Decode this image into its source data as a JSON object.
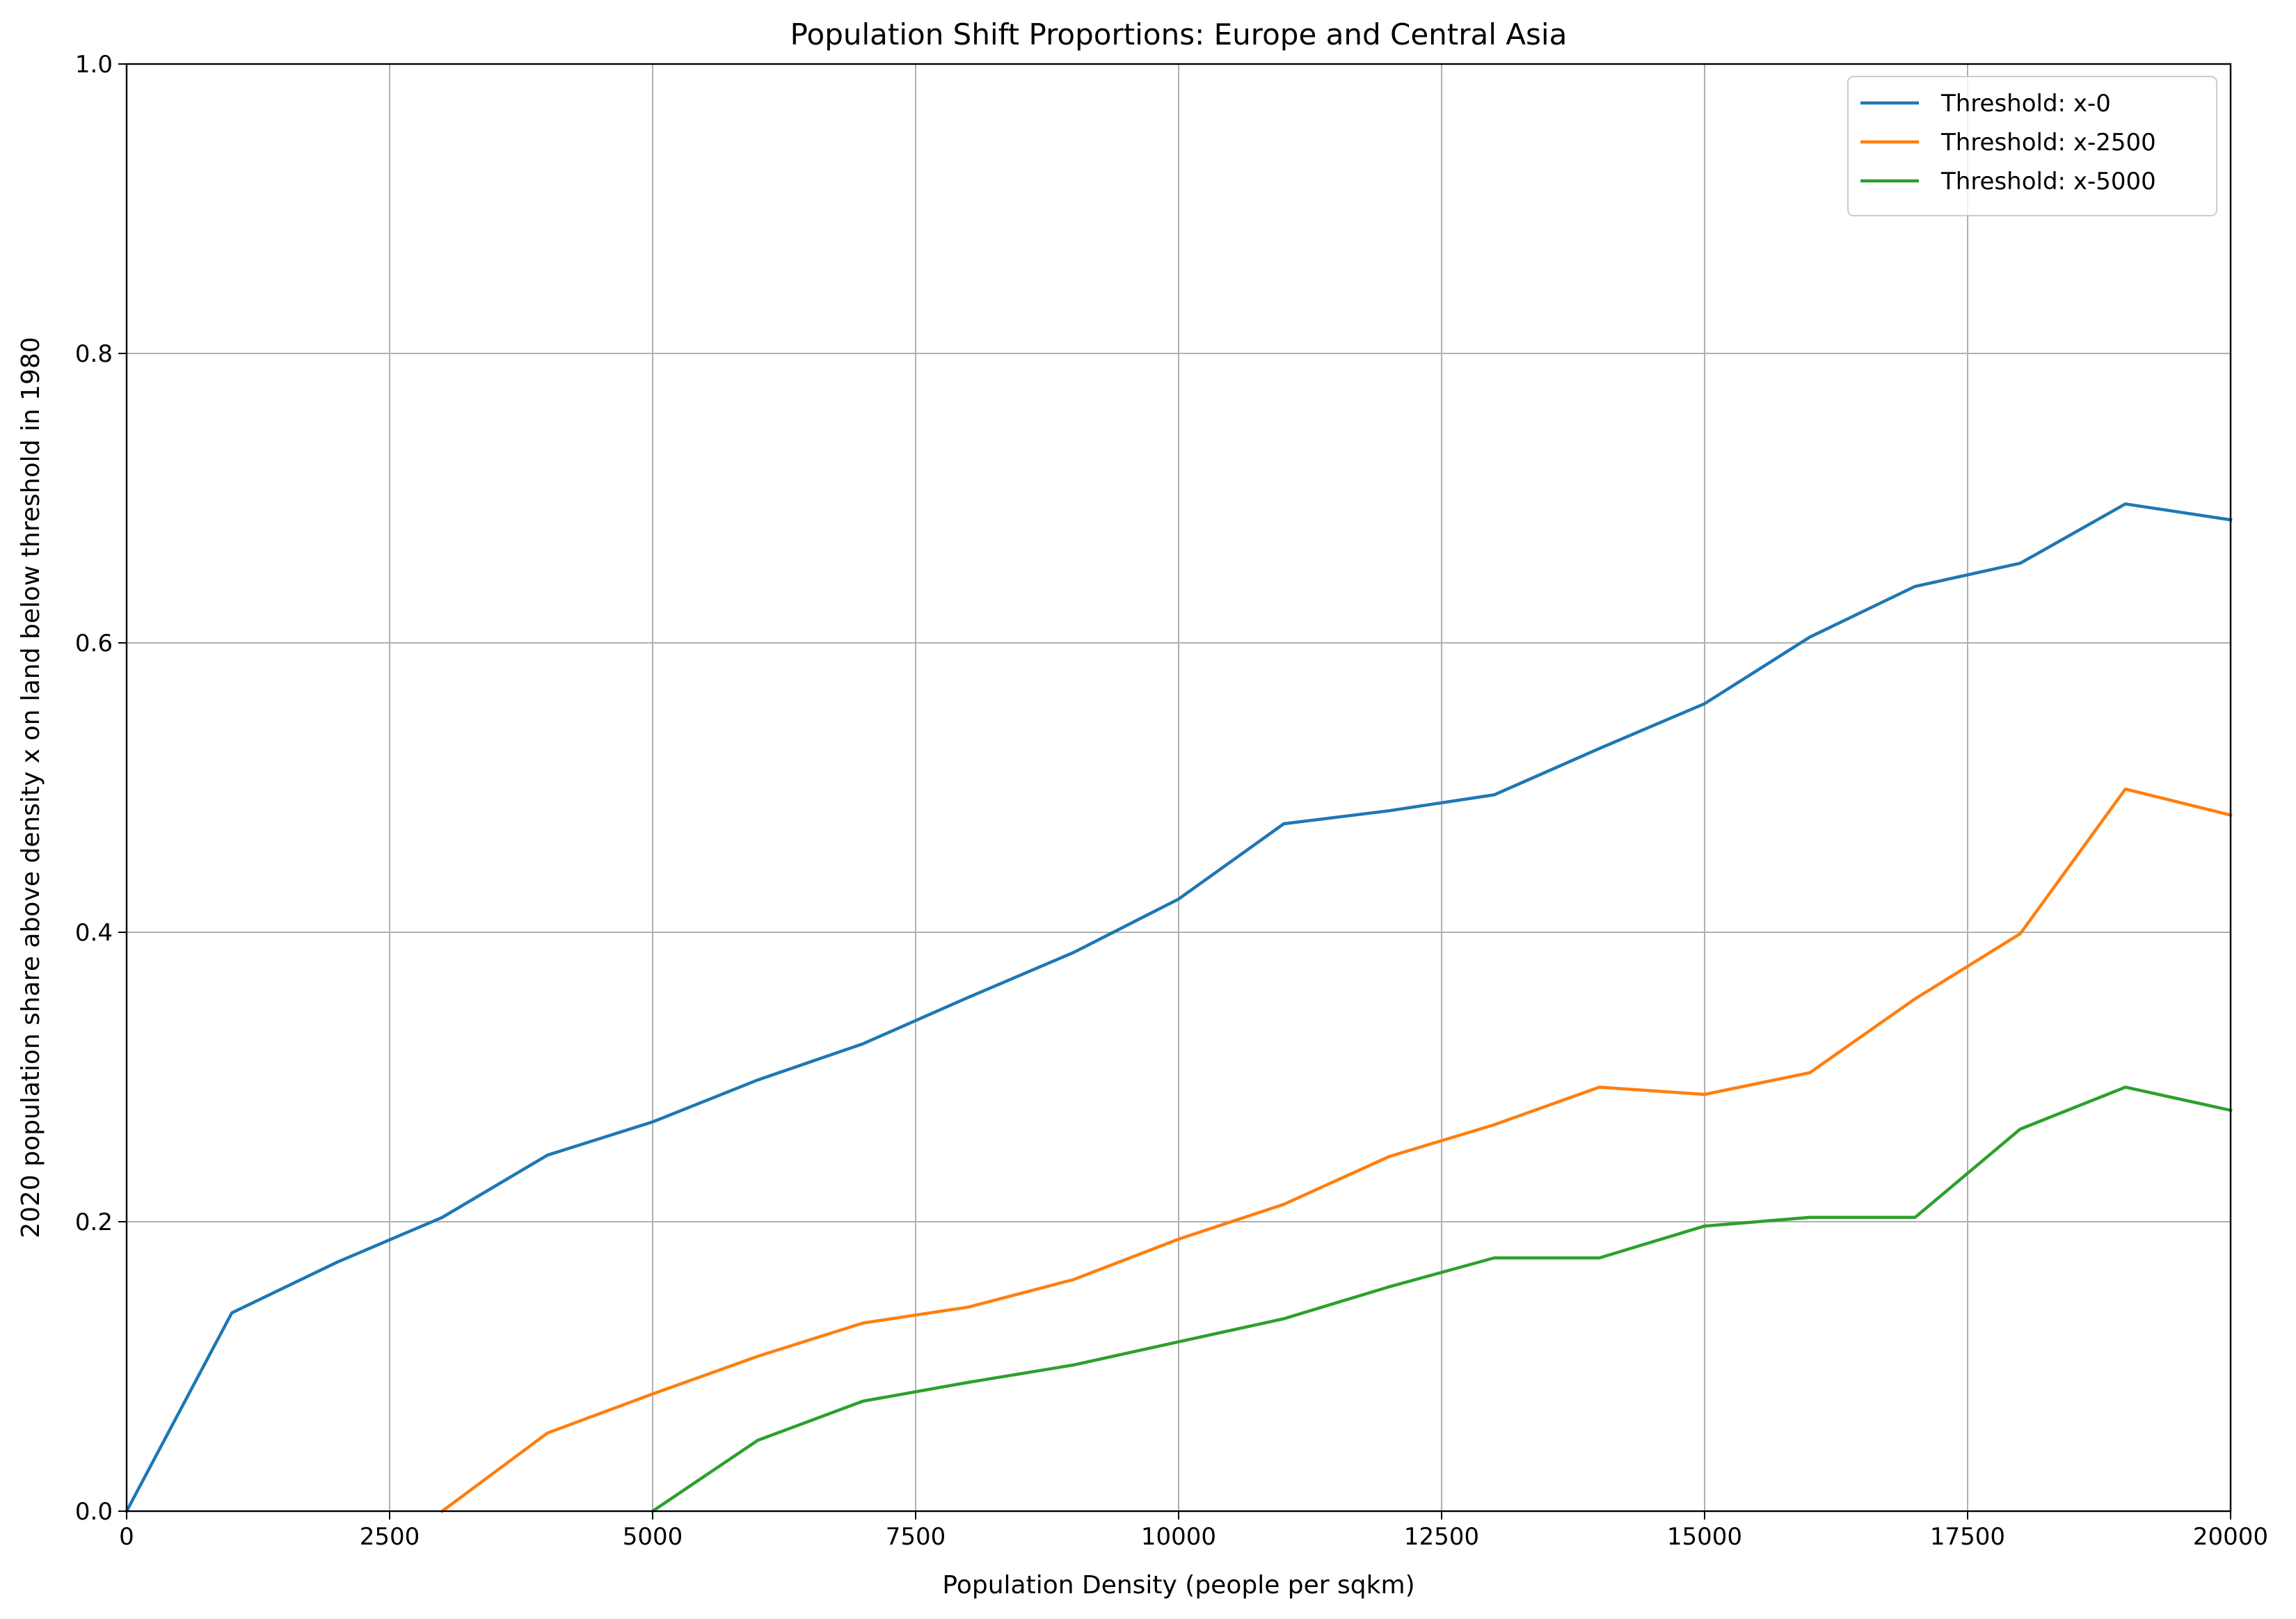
{
  "chart_data": {
    "type": "line",
    "title": "Population Shift Proportions: Europe and Central Asia",
    "xlabel": "Population Density (people per sqkm)",
    "ylabel": "2020 population share above density x on land below threshold in 1980",
    "xlim": [
      0,
      20000
    ],
    "ylim": [
      0,
      1.0
    ],
    "xticks": [
      0,
      2500,
      5000,
      7500,
      10000,
      12500,
      15000,
      17500,
      20000
    ],
    "xtick_labels": [
      "0",
      "2500",
      "5000",
      "7500",
      "10000",
      "12500",
      "15000",
      "17500",
      "20000"
    ],
    "yticks": [
      0,
      0.2,
      0.4,
      0.6,
      0.8,
      1.0
    ],
    "ytick_labels": [
      "0.0",
      "0.2",
      "0.4",
      "0.6",
      "0.8",
      "1.0"
    ],
    "grid": true,
    "legend_position": "top-right",
    "series": [
      {
        "name": "Threshold: x-0",
        "color": "#1f77b4",
        "x": [
          0,
          1000,
          2000,
          3000,
          4000,
          5000,
          6000,
          7000,
          8000,
          9000,
          10000,
          11000,
          12000,
          13000,
          14000,
          15000,
          16000,
          17000,
          18000,
          19000,
          20000
        ],
        "y": [
          0.0,
          0.137,
          0.172,
          0.203,
          0.246,
          0.269,
          0.298,
          0.323,
          0.355,
          0.386,
          0.423,
          0.475,
          0.484,
          0.495,
          0.527,
          0.558,
          0.604,
          0.639,
          0.655,
          0.696,
          0.685
        ]
      },
      {
        "name": "Threshold: x-2500",
        "color": "#ff7f0e",
        "x": [
          3000,
          4000,
          5000,
          6000,
          7000,
          8000,
          9000,
          10000,
          11000,
          12000,
          13000,
          14000,
          15000,
          16000,
          17000,
          18000,
          19000,
          20000
        ],
        "y": [
          0.0,
          0.054,
          0.081,
          0.107,
          0.13,
          0.141,
          0.16,
          0.188,
          0.212,
          0.245,
          0.267,
          0.293,
          0.288,
          0.303,
          0.354,
          0.399,
          0.499,
          0.481
        ]
      },
      {
        "name": "Threshold: x-5000",
        "color": "#2ca02c",
        "x": [
          5000,
          6000,
          7000,
          8000,
          9000,
          10000,
          11000,
          12000,
          13000,
          14000,
          15000,
          16000,
          17000,
          18000,
          19000,
          20000
        ],
        "y": [
          0.0,
          0.049,
          0.076,
          0.089,
          0.101,
          0.117,
          0.133,
          0.155,
          0.175,
          0.175,
          0.197,
          0.203,
          0.203,
          0.264,
          0.293,
          0.277
        ]
      }
    ]
  }
}
